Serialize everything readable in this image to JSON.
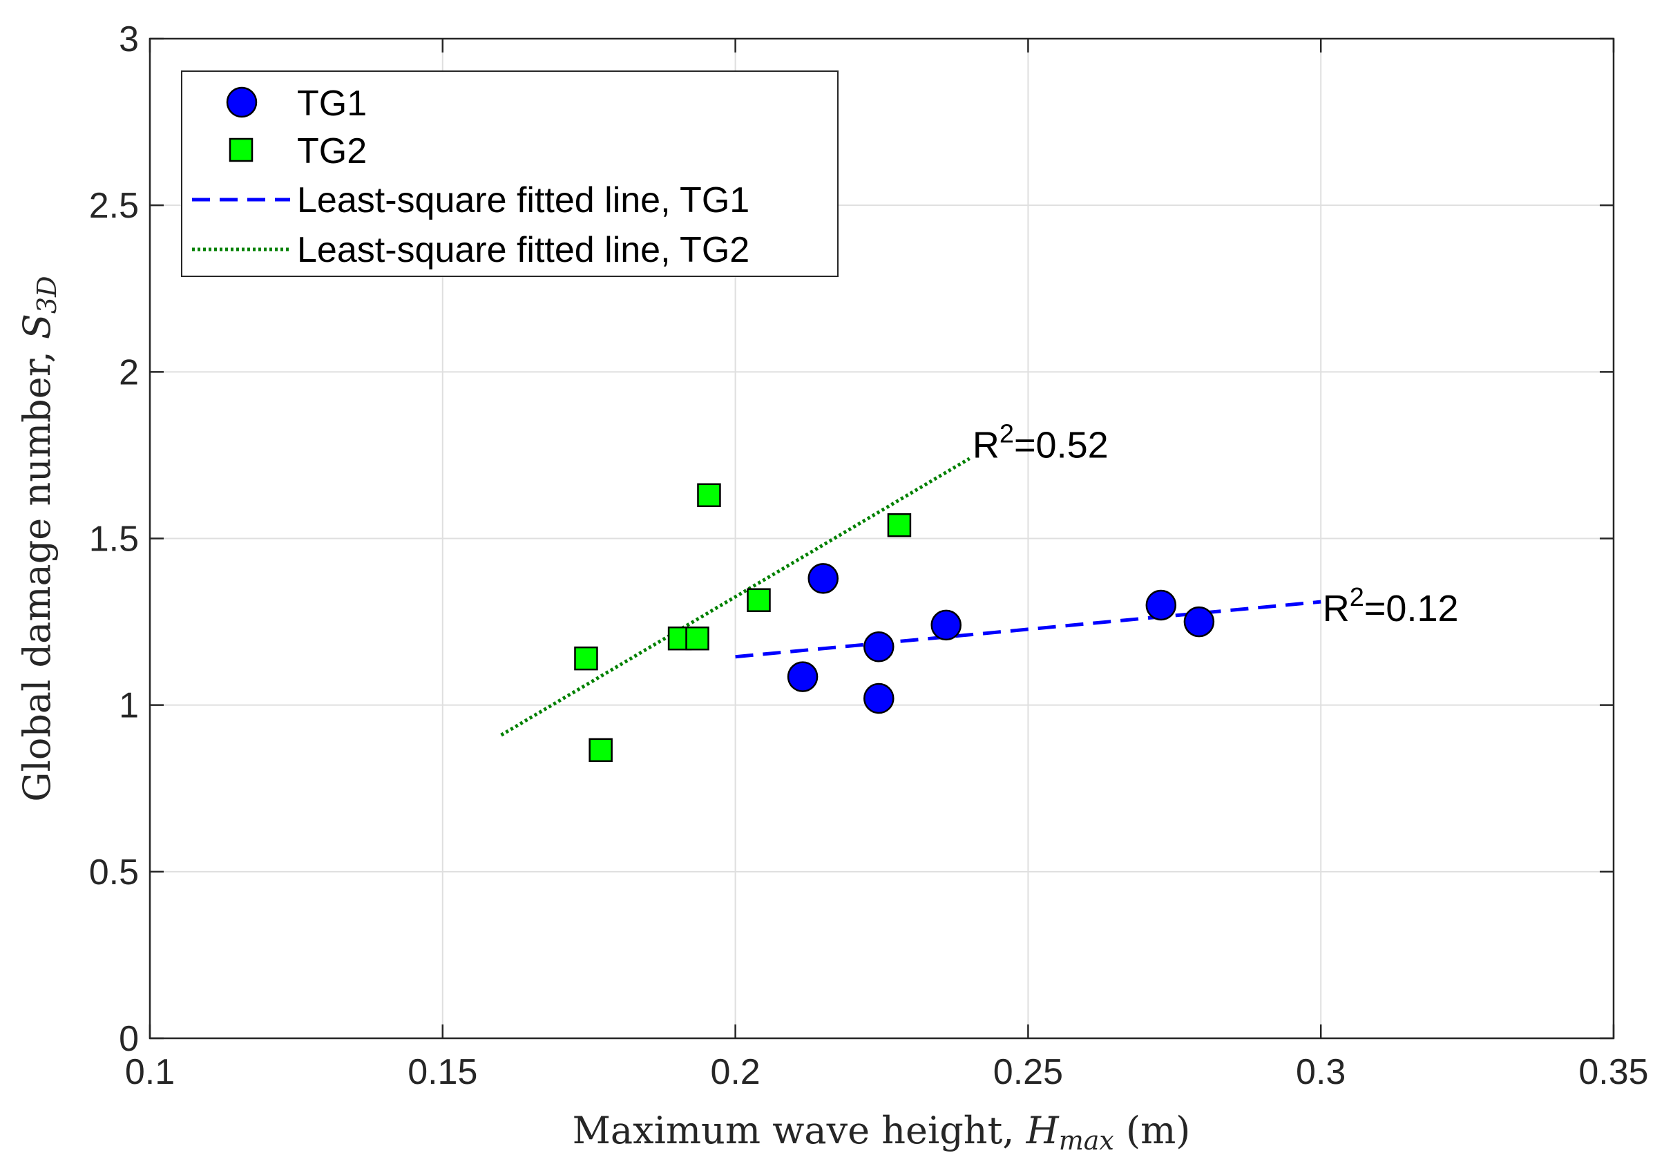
{
  "chart_data": {
    "type": "scatter",
    "xlabel": {
      "prefix": "Maximum wave height, ",
      "var": "H",
      "sub": "max",
      "suffix": " (m)"
    },
    "ylabel": {
      "prefix": "Global damage number, ",
      "var": "S",
      "sub": "3D"
    },
    "xlim": [
      0.1,
      0.35
    ],
    "ylim": [
      0,
      3
    ],
    "xticks": [
      0.1,
      0.15,
      0.2,
      0.25,
      0.3,
      0.35
    ],
    "xtick_labels": [
      "0.1",
      "0.15",
      "0.2",
      "0.25",
      "0.3",
      "0.35"
    ],
    "yticks": [
      0,
      0.5,
      1,
      1.5,
      2,
      2.5,
      3
    ],
    "ytick_labels": [
      "0",
      "0.5",
      "1",
      "1.5",
      "2",
      "2.5",
      "3"
    ],
    "grid": true,
    "legend_position": "top-left",
    "series": [
      {
        "name": "TG1",
        "kind": "marker",
        "marker": "circle",
        "color": "#0000ff",
        "x": [
          0.2115,
          0.215,
          0.2245,
          0.2245,
          0.236,
          0.2727,
          0.2792
        ],
        "y": [
          1.085,
          1.38,
          1.175,
          1.02,
          1.24,
          1.3,
          1.25
        ]
      },
      {
        "name": "TG2",
        "kind": "marker",
        "marker": "square",
        "color": "#00ff00",
        "x": [
          0.1745,
          0.177,
          0.1905,
          0.1935,
          0.1955,
          0.204,
          0.228
        ],
        "y": [
          1.14,
          0.865,
          1.2,
          1.2,
          1.63,
          1.315,
          1.54
        ]
      },
      {
        "name": "Least-square fitted line, TG1",
        "kind": "line",
        "style": "dashed",
        "color": "#0000ff",
        "x": [
          0.2,
          0.3
        ],
        "y": [
          1.145,
          1.31
        ]
      },
      {
        "name": "Least-square fitted line, TG2",
        "kind": "line",
        "style": "dotted",
        "color": "#008000",
        "x": [
          0.16,
          0.24
        ],
        "y": [
          0.91,
          1.74
        ]
      }
    ],
    "annotations": [
      {
        "base": "R",
        "sup": "2",
        "rest": "=0.52",
        "x": 0.2405,
        "y": 1.78
      },
      {
        "base": "R",
        "sup": "2",
        "rest": "=0.12",
        "x": 0.3003,
        "y": 1.29
      }
    ]
  }
}
